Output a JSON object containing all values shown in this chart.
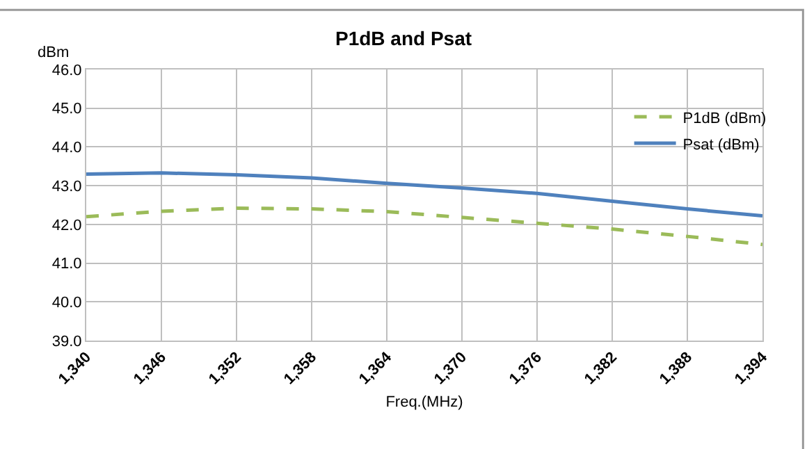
{
  "chart_data": {
    "type": "line",
    "title": "P1dB and Psat",
    "xlabel": "Freq.(MHz)",
    "ylabel": "dBm",
    "x": [
      1340,
      1346,
      1352,
      1358,
      1364,
      1370,
      1376,
      1382,
      1388,
      1394
    ],
    "series": [
      {
        "name": "P1dB (dBm)",
        "color": "#9bbb59",
        "line_style": "dashed",
        "values": [
          42.2,
          42.34,
          42.42,
          42.4,
          42.33,
          42.18,
          42.03,
          41.88,
          41.69,
          41.48
        ]
      },
      {
        "name": "Psat (dBm)",
        "color": "#4f81bd",
        "line_style": "solid",
        "values": [
          43.3,
          43.33,
          43.28,
          43.2,
          43.06,
          42.94,
          42.8,
          42.6,
          42.4,
          42.22
        ]
      }
    ],
    "xlim": [
      1340,
      1394
    ],
    "xticks": [
      {
        "value": 1340,
        "label": "1,340"
      },
      {
        "value": 1346,
        "label": "1,346"
      },
      {
        "value": 1352,
        "label": "1,352"
      },
      {
        "value": 1358,
        "label": "1,358"
      },
      {
        "value": 1364,
        "label": "1,364"
      },
      {
        "value": 1370,
        "label": "1,370"
      },
      {
        "value": 1376,
        "label": "1,376"
      },
      {
        "value": 1382,
        "label": "1,382"
      },
      {
        "value": 1388,
        "label": "1,388"
      },
      {
        "value": 1394,
        "label": "1,394"
      }
    ],
    "ylim": [
      39,
      46
    ],
    "yticks": [
      {
        "value": 39,
        "label": "39.0"
      },
      {
        "value": 40,
        "label": "40.0"
      },
      {
        "value": 41,
        "label": "41.0"
      },
      {
        "value": 42,
        "label": "42.0"
      },
      {
        "value": 43,
        "label": "43.0"
      },
      {
        "value": 44,
        "label": "44.0"
      },
      {
        "value": 45,
        "label": "45.0"
      },
      {
        "value": 46,
        "label": "46.0"
      }
    ],
    "grid": true,
    "legend": "top right",
    "marker": "none"
  }
}
